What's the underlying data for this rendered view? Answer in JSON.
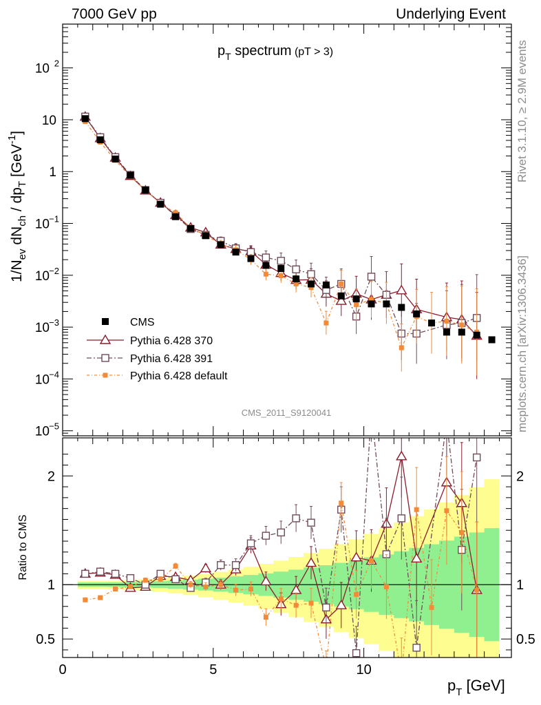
{
  "header": {
    "left": "7000 GeV pp",
    "right": "Underlying Event"
  },
  "plot_title": {
    "main": "p",
    "sub": "T",
    "rest": " spectrum",
    "cut": "(pT >  3)"
  },
  "side_labels": {
    "rivet": "Rivet 3.1.10, ≥ 2.9M events",
    "mcplots": "mcplots.cern.ch [arXiv:1306.3436]"
  },
  "analysis_id": "CMS_2011_S9120041",
  "colors": {
    "cms": "#000000",
    "p370": "#8b1a2a",
    "p391": "#6e4a5a",
    "pdef": "#f28a38",
    "band_inner": "#90f090",
    "band_outer": "#fefe90"
  },
  "chart_data": {
    "type": "scatter",
    "xlabel": "p_T [GeV]",
    "ylabel": "1/N_ev dN_ch / dp_T [GeV^-1]",
    "xlim": [
      0,
      14.9
    ],
    "ylim": [
      8e-06,
      700
    ],
    "yscale": "log",
    "x_ticks": [
      0,
      5,
      10
    ],
    "y_ticks": [
      {
        "v": 1e-05,
        "b": "10",
        "e": "−5"
      },
      {
        "v": 0.0001,
        "b": "10",
        "e": "−4"
      },
      {
        "v": 0.001,
        "b": "10",
        "e": "−3"
      },
      {
        "v": 0.01,
        "b": "10",
        "e": "−2"
      },
      {
        "v": 0.1,
        "b": "10",
        "e": "−1"
      },
      {
        "v": 1,
        "b": "1",
        "e": ""
      },
      {
        "v": 10,
        "b": "10",
        "e": ""
      },
      {
        "v": 100,
        "b": "10",
        "e": "2"
      }
    ],
    "legend": [
      "CMS",
      "Pythia 6.428 370",
      "Pythia 6.428 391",
      "Pythia 6.428 default"
    ],
    "legend_position": "lower-left",
    "cms": {
      "x": [
        0.75,
        1.25,
        1.75,
        2.25,
        2.75,
        3.25,
        3.75,
        4.25,
        4.75,
        5.25,
        5.75,
        6.25,
        6.75,
        7.25,
        7.75,
        8.25,
        8.75,
        9.25,
        9.75,
        10.25,
        10.75,
        11.25,
        11.75,
        12.25,
        12.75,
        13.25,
        13.75,
        14.25
      ],
      "y": [
        10.5,
        4.1,
        1.75,
        0.85,
        0.44,
        0.235,
        0.135,
        0.08,
        0.058,
        0.039,
        0.028,
        0.021,
        0.0155,
        0.0135,
        0.0085,
        0.0068,
        0.0065,
        0.004,
        0.0035,
        0.0028,
        0.0028,
        0.0024,
        0.0018,
        0.0012,
        0.0008,
        0.0008,
        0.0007,
        0.00057
      ]
    },
    "series": [
      {
        "name": "Pythia 6.428 370",
        "key": "p370",
        "x": [
          0.75,
          1.25,
          1.75,
          2.25,
          2.75,
          3.25,
          3.75,
          4.25,
          4.75,
          5.25,
          5.75,
          6.25,
          6.75,
          7.25,
          7.75,
          8.25,
          8.75,
          9.25,
          9.75,
          10.25,
          10.75,
          11.25,
          11.75,
          12.75,
          13.25,
          13.75
        ],
        "y": [
          11.4,
          4.4,
          1.85,
          0.82,
          0.43,
          0.25,
          0.145,
          0.083,
          0.067,
          0.039,
          0.032,
          0.029,
          0.016,
          0.011,
          0.0081,
          0.0082,
          0.0044,
          0.0032,
          0.0044,
          0.0034,
          0.0042,
          0.0051,
          0.0022,
          0.00155,
          0.0014,
          0.00068
        ],
        "ratio": [
          1.1,
          1.11,
          1.09,
          0.97,
          0.98,
          1.08,
          1.07,
          1.04,
          1.15,
          1.0,
          1.14,
          1.36,
          1.03,
          0.82,
          0.95,
          1.2,
          0.68,
          0.81,
          1.25,
          1.22,
          1.56,
          2.18,
          1.24,
          1.94,
          1.75,
          0.95
        ]
      },
      {
        "name": "Pythia 6.428 391",
        "key": "p391",
        "x": [
          0.75,
          1.25,
          1.75,
          2.25,
          2.75,
          3.25,
          3.75,
          4.25,
          4.75,
          5.25,
          5.75,
          6.25,
          6.75,
          7.25,
          7.75,
          8.25,
          8.75,
          9.25,
          9.75,
          10.25,
          10.75,
          11.25,
          11.75,
          12.75,
          13.25,
          13.75
        ],
        "y": [
          11.5,
          4.6,
          1.9,
          0.86,
          0.44,
          0.25,
          0.14,
          0.078,
          0.06,
          0.046,
          0.033,
          0.028,
          0.022,
          0.019,
          0.013,
          0.0105,
          0.0052,
          0.0068,
          0.0016,
          0.0094,
          0.0042,
          0.00075,
          0.00075,
          0.0011,
          0.0012,
          0.0015
        ],
        "ratio": [
          1.1,
          1.12,
          1.1,
          1.06,
          1.0,
          1.1,
          1.05,
          0.97,
          1.02,
          1.18,
          1.18,
          1.38,
          1.45,
          1.48,
          1.61,
          1.57,
          0.79,
          1.69,
          0.37,
          2.6,
          1.28,
          1.61,
          0.42,
          2.5,
          1.32,
          2.17
        ]
      },
      {
        "name": "Pythia 6.428 default",
        "key": "pdef",
        "x": [
          0.75,
          1.25,
          1.75,
          2.25,
          2.75,
          3.25,
          3.75,
          4.25,
          4.75,
          5.25,
          5.75,
          6.25,
          6.75,
          7.25,
          7.75,
          8.25,
          8.75,
          9.25,
          9.75,
          10.25,
          10.75,
          11.25,
          11.75,
          12.25,
          12.75,
          13.25,
          13.75
        ],
        "y": [
          9.2,
          3.7,
          1.65,
          0.8,
          0.44,
          0.24,
          0.16,
          0.082,
          0.059,
          0.04,
          0.031,
          0.02,
          0.0105,
          0.0098,
          0.0068,
          0.0058,
          0.0012,
          0.0068,
          0.0027,
          0.0034,
          0.0029,
          0.0004,
          0.0016,
          0.0012,
          0.0013,
          0.0011,
          0.0008
        ],
        "ratio": [
          0.86,
          0.88,
          0.96,
          0.98,
          1.04,
          1.05,
          1.17,
          1.0,
          0.98,
          1.0,
          0.95,
          0.96,
          0.7,
          0.87,
          0.81,
          0.83,
          0.23,
          1.75,
          0.91,
          1.22,
          0.98,
          0.17,
          1.69,
          0.79,
          1.68,
          1.48,
          0.95
        ]
      }
    ],
    "ratio_panel": {
      "ylabel": "Ratio to CMS",
      "ylim": [
        0.33,
        2.35
      ],
      "y_ticks": [
        0.5,
        1,
        2
      ]
    }
  }
}
